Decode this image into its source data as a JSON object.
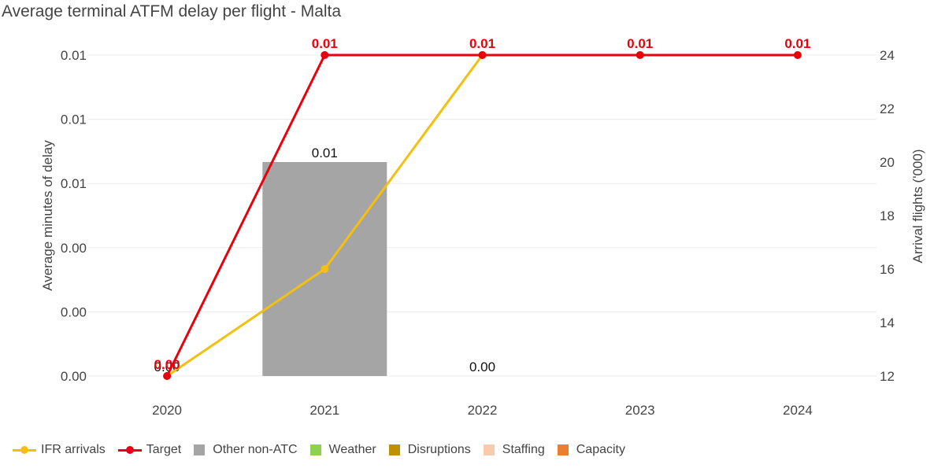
{
  "chart_data": {
    "type": "bar",
    "title": "Average terminal ATFM delay per flight - Malta",
    "ylabel_left": "Average minutes of delay",
    "ylabel_right": "Arrival flights ('000)",
    "categories": [
      "2020",
      "2021",
      "2022",
      "2023",
      "2024"
    ],
    "y_left_ticks": [
      "0.00",
      "0.00",
      "0.00",
      "0.01",
      "0.01",
      "0.01"
    ],
    "y_left_range": [
      0,
      0.015
    ],
    "y_right_ticks": [
      "12",
      "14",
      "16",
      "18",
      "20",
      "22",
      "24"
    ],
    "y_right_range": [
      12,
      24
    ],
    "bar_series": [
      {
        "name": "Other non-ATC",
        "color": "#a5a5a5",
        "values": [
          0.0,
          0.01,
          0.0,
          null,
          null
        ]
      },
      {
        "name": "Weather",
        "color": "#8fd14f",
        "values": [
          0,
          0,
          0,
          null,
          null
        ]
      },
      {
        "name": "Disruptions",
        "color": "#bf9000",
        "values": [
          0,
          0,
          0,
          null,
          null
        ]
      },
      {
        "name": "Staffing",
        "color": "#f8cbad",
        "values": [
          0,
          0,
          0,
          null,
          null
        ]
      },
      {
        "name": "Capacity",
        "color": "#ed7d31",
        "values": [
          0,
          0,
          0,
          null,
          null
        ]
      }
    ],
    "bar_total_labels": [
      "0.00",
      "0.01",
      "0.00",
      "",
      ""
    ],
    "line_series": [
      {
        "name": "IFR arrivals",
        "color": "#f5bf0f",
        "axis": "right",
        "values": [
          12.0,
          16.0,
          24.0,
          null,
          null
        ]
      },
      {
        "name": "Target",
        "color": "#e8000b",
        "axis": "left",
        "values": [
          0.0,
          0.015,
          0.015,
          0.015,
          0.015
        ],
        "labels": [
          "0.00",
          "0.01",
          "0.01",
          "0.01",
          "0.01"
        ]
      }
    ],
    "legend": [
      "IFR arrivals",
      "Target",
      "Other non-ATC",
      "Weather",
      "Disruptions",
      "Staffing",
      "Capacity"
    ],
    "legend_position": "bottom",
    "grid": true
  }
}
